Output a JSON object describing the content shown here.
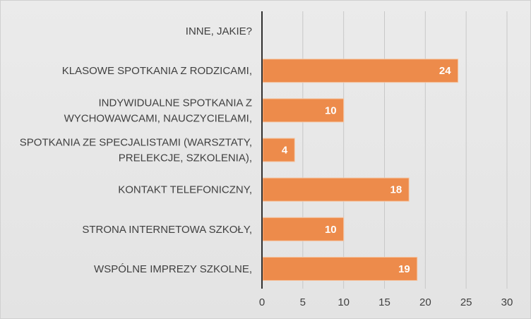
{
  "chart_data": {
    "type": "bar",
    "orientation": "horizontal",
    "categories": [
      [
        "INNE, JAKIE?"
      ],
      [
        "KLASOWE SPOTKANIA Z RODZICAMI,"
      ],
      [
        "INDYWIDUALNE SPOTKANIA Z",
        "WYCHOWAWCAMI, NAUCZYCIELAMI,"
      ],
      [
        "SPOTKANIA ZE SPECJALISTAMI (WARSZTATY,",
        "PRELEKCJE, SZKOLENIA),"
      ],
      [
        "KONTAKT TELEFONICZNY,"
      ],
      [
        "STRONA INTERNETOWA SZKOŁY,"
      ],
      [
        "WSPÓLNE IMPREZY SZKOLNE,"
      ]
    ],
    "values": [
      0,
      24,
      10,
      4,
      18,
      10,
      19
    ],
    "data_labels": [
      "",
      "24",
      "10",
      "4",
      "18",
      "10",
      "19"
    ],
    "xlim": [
      0,
      30
    ],
    "x_ticks": [
      "0",
      "5",
      "10",
      "15",
      "20",
      "25",
      "30"
    ],
    "grid": true,
    "legend": "none",
    "colors": {
      "bar": "#ed8b4b",
      "bar_border": "#f5c6a3",
      "grid": "#c8c8c8",
      "axis": "#303030",
      "background": "#e6e6e6"
    }
  }
}
